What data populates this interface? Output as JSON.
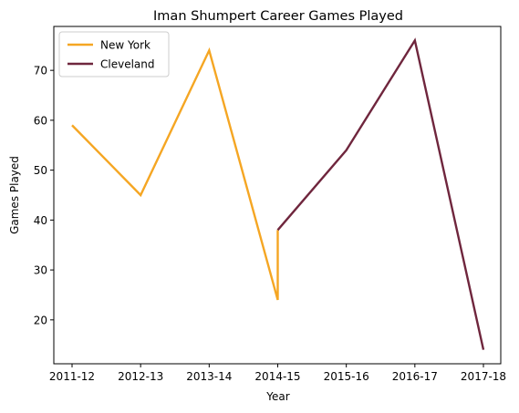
{
  "chart_data": {
    "type": "line",
    "title": "Iman Shumpert Career Games Played",
    "xlabel": "Year",
    "ylabel": "Games Played",
    "categories": [
      "2011-12",
      "2012-13",
      "2013-14",
      "2014-15",
      "2015-16",
      "2016-17",
      "2017-18"
    ],
    "ylim": [
      11.2,
      78.8
    ],
    "yticks": [
      20,
      30,
      40,
      50,
      60,
      70
    ],
    "grid": false,
    "legend_position": "top-left",
    "series": [
      {
        "name": "New York",
        "color": "#f5a623",
        "points": [
          {
            "x": "2011-12",
            "y": 59
          },
          {
            "x": "2012-13",
            "y": 45
          },
          {
            "x": "2013-14",
            "y": 74
          },
          {
            "x": "2014-15",
            "y": 24
          },
          {
            "x": "2014-15",
            "y": 38
          }
        ]
      },
      {
        "name": "Cleveland",
        "color": "#6f263d",
        "points": [
          {
            "x": "2014-15",
            "y": 38
          },
          {
            "x": "2015-16",
            "y": 54
          },
          {
            "x": "2016-17",
            "y": 76
          },
          {
            "x": "2017-18",
            "y": 14
          }
        ]
      }
    ]
  }
}
